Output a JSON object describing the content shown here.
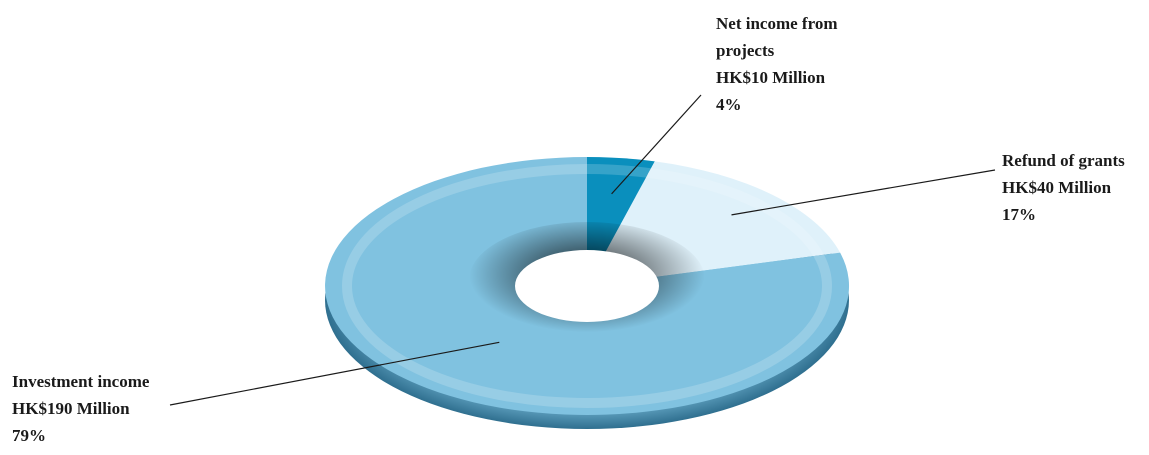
{
  "chart_data": {
    "type": "pie",
    "variant": "3d-donut",
    "title": "",
    "unit": "HK$ Million",
    "slices": [
      {
        "name": "Net income from projects",
        "value": 10,
        "value_label": "HK$10 Million",
        "percent": 4,
        "percent_label": "4%",
        "color": "#0a8fbd"
      },
      {
        "name": "Refund of grants",
        "value": 40,
        "value_label": "HK$40 Million",
        "percent": 17,
        "percent_label": "17%",
        "color": "#dff1fa"
      },
      {
        "name": "Investment income",
        "value": 190,
        "value_label": "HK$190 Million",
        "percent": 79,
        "percent_label": "79%",
        "color": "#80c2e0"
      }
    ]
  }
}
